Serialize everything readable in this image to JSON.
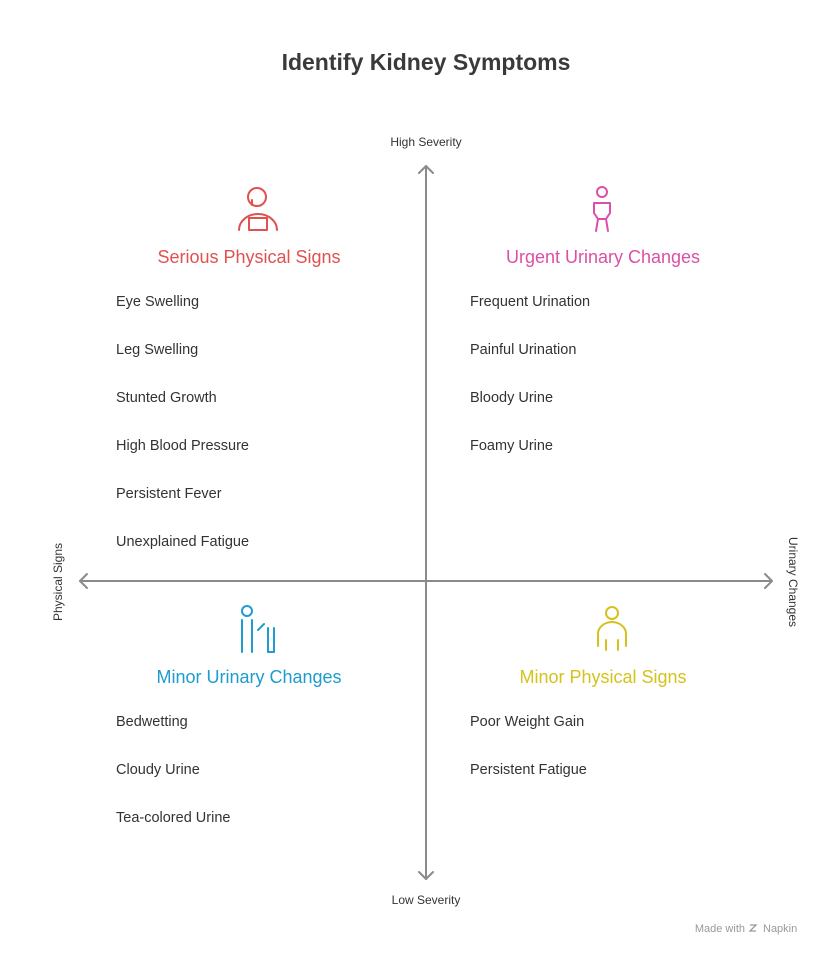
{
  "header": {
    "title": "Identify Kidney Symptoms"
  },
  "axes": {
    "top": "High Severity",
    "bottom": "Low Severity",
    "left": "Physical Signs",
    "right": "Urinary Changes"
  },
  "quadrants": [
    {
      "title": "Serious Physical Signs",
      "color": "#e0514f",
      "items": [
        "Eye Swelling",
        "Leg Swelling",
        "Stunted Growth",
        "High Blood Pressure",
        "Persistent Fever",
        "Unexplained Fatigue"
      ]
    },
    {
      "title": "Urgent Urinary Changes",
      "color": "#dc4fa6",
      "items": [
        "Frequent Urination",
        "Painful Urination",
        "Bloody Urine",
        "Foamy Urine"
      ]
    },
    {
      "title": "Minor Urinary Changes",
      "color": "#1e9ccf",
      "items": [
        "Bedwetting",
        "Cloudy Urine",
        "Tea-colored Urine"
      ]
    },
    {
      "title": "Minor Physical Signs",
      "color": "#d6c21c",
      "items": [
        "Poor Weight Gain",
        "Persistent Fatigue"
      ]
    }
  ],
  "footer": {
    "made_with": "Made with",
    "brand": "Napkin"
  }
}
